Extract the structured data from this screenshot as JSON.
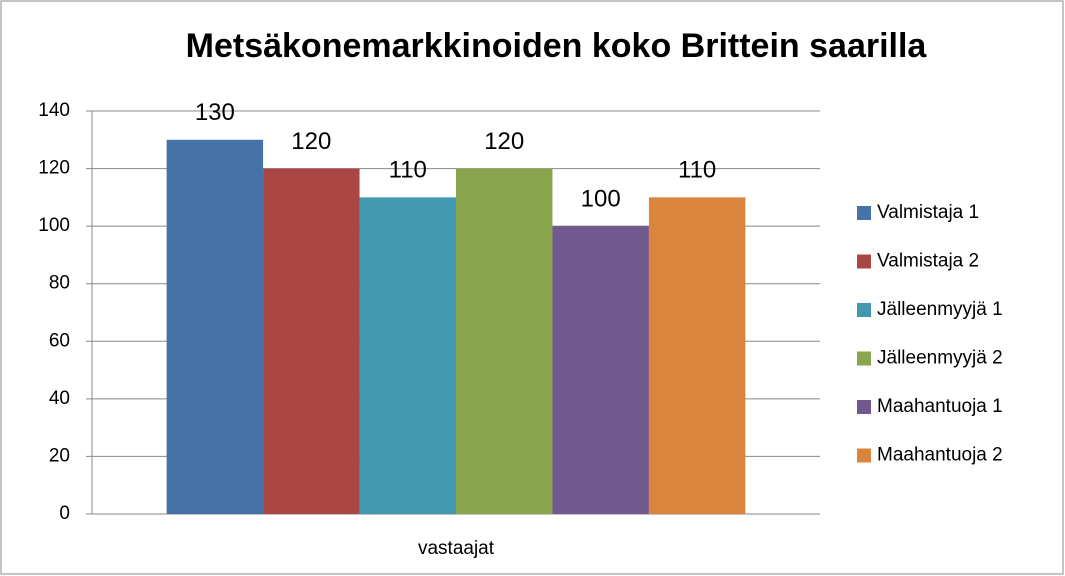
{
  "chart_data": {
    "type": "bar",
    "title": "Metsäkonemarkkinoiden koko Brittein saarilla",
    "categories": [
      "vastaajat"
    ],
    "series": [
      {
        "name": "Valmistaja 1",
        "color": "#4572a7",
        "values": [
          130
        ]
      },
      {
        "name": "Valmistaja 2",
        "color": "#aa4643",
        "values": [
          120
        ]
      },
      {
        "name": "Jälleenmyyjä 1",
        "color": "#4198af",
        "values": [
          110
        ]
      },
      {
        "name": "Jälleenmyyjä 2",
        "color": "#89a54e",
        "values": [
          120
        ]
      },
      {
        "name": "Maahantuoja 1",
        "color": "#71588f",
        "values": [
          100
        ]
      },
      {
        "name": "Maahantuoja 2",
        "color": "#db843d",
        "values": [
          110
        ]
      }
    ],
    "ylim": [
      0,
      140
    ],
    "yticks": [
      0,
      20,
      40,
      60,
      80,
      100,
      120,
      140
    ],
    "grid": true,
    "legend": "right"
  }
}
